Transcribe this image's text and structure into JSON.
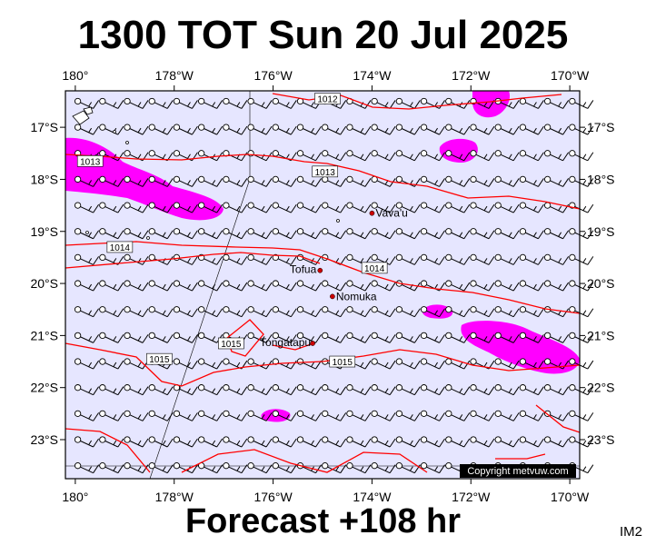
{
  "title": "1300 TOT Sun 20 Jul 2025",
  "forecast_label": "Forecast +108 hr",
  "image_code": "IM2",
  "copyright": "Copyright metvuw.com",
  "axes": {
    "top_lon_labels": [
      "180°",
      "178°W",
      "176°W",
      "174°W",
      "172°W",
      "170°W"
    ],
    "bottom_lon_labels": [
      "180°",
      "178°W",
      "176°W",
      "174°W",
      "172°W",
      "170°W"
    ],
    "left_lat_labels": [
      "17°S",
      "18°S",
      "19°S",
      "20°S",
      "21°S",
      "22°S",
      "23°S"
    ],
    "right_lat_labels": [
      "17°S",
      "18°S",
      "19°S",
      "20°S",
      "21°S",
      "22°S",
      "23°S"
    ],
    "lon_values": [
      -180,
      -178,
      -176,
      -174,
      -172,
      -170
    ],
    "lat_values": [
      -17,
      -18,
      -19,
      -20,
      -21,
      -22,
      -23
    ],
    "extent": {
      "lon_min": -180.2,
      "lon_max": -169.8,
      "lat_max": -16.3,
      "lat_min": -23.75
    }
  },
  "places": [
    {
      "name": "Vava'u",
      "lon": -174.0,
      "lat": -18.65
    },
    {
      "name": "Tofua",
      "lon": -175.05,
      "lat": -19.75
    },
    {
      "name": "Nomuka",
      "lon": -174.8,
      "lat": -20.25
    },
    {
      "name": "Tongatapu",
      "lon": -175.2,
      "lat": -21.15
    }
  ],
  "isobars": [
    {
      "label": "1012",
      "lon": -174.9,
      "lat": -16.45
    },
    {
      "label": "1013",
      "lon": -179.7,
      "lat": -17.65
    },
    {
      "label": "1013",
      "lon": -174.95,
      "lat": -17.85
    },
    {
      "label": "1014",
      "lon": -179.1,
      "lat": -19.3
    },
    {
      "label": "1014",
      "lon": -173.95,
      "lat": -19.7
    },
    {
      "label": "1015",
      "lon": -176.85,
      "lat": -21.15
    },
    {
      "label": "1015",
      "lon": -178.3,
      "lat": -21.45
    },
    {
      "label": "1015",
      "lon": -174.6,
      "lat": -21.5
    }
  ],
  "colors": {
    "ocean": "#e6e6ff",
    "isobar": "#ff0000",
    "rain": "#ff00ff",
    "wind_barb": "#000000",
    "place_marker": "#cc0000"
  }
}
